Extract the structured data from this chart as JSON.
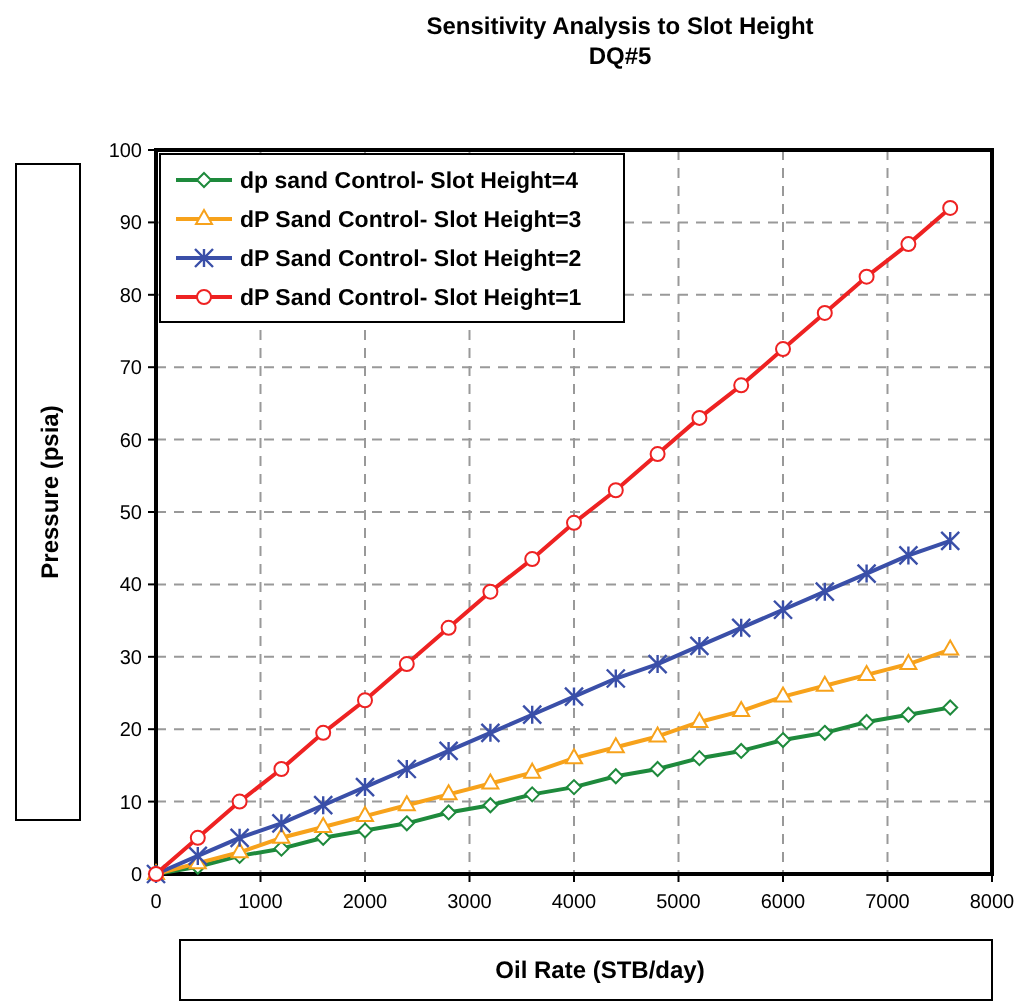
{
  "chart_data": {
    "type": "line",
    "title": "Sensitivity Analysis to Slot Height",
    "subtitle": "DQ#5",
    "xlabel": "Oil Rate (STB/day)",
    "ylabel": "Pressure (psia)",
    "x": [
      0,
      400,
      800,
      1200,
      1600,
      2000,
      2400,
      2800,
      3200,
      3600,
      4000,
      4400,
      4800,
      5200,
      5600,
      6000,
      6400,
      6800,
      7200,
      7600
    ],
    "series": [
      {
        "name": "dp sand Control- Slot Height=4",
        "color": "#1e8a3c",
        "marker": "diamond",
        "values": [
          0,
          1,
          2.5,
          3.5,
          5,
          6,
          7,
          8.5,
          9.5,
          11,
          12,
          13.5,
          14.5,
          16,
          17,
          18.5,
          19.5,
          21,
          22,
          23
        ]
      },
      {
        "name": "dP Sand Control- Slot Height=3",
        "color": "#f7a21b",
        "marker": "triangle",
        "values": [
          0,
          1.5,
          3,
          5,
          6.5,
          8,
          9.5,
          11,
          12.5,
          14,
          16,
          17.5,
          19,
          21,
          22.5,
          24.5,
          26,
          27.5,
          29,
          31
        ]
      },
      {
        "name": "dP Sand Control- Slot Height=2",
        "color": "#3a4fa8",
        "marker": "cross",
        "values": [
          0,
          2.5,
          5,
          7,
          9.5,
          12,
          14.5,
          17,
          19.5,
          22,
          24.5,
          27,
          29,
          31.5,
          34,
          36.5,
          39,
          41.5,
          44,
          46
        ]
      },
      {
        "name": "dP Sand Control- Slot Height=1",
        "color": "#ee2222",
        "marker": "circle",
        "values": [
          0,
          5,
          10,
          14.5,
          19.5,
          24,
          29,
          34,
          39,
          43.5,
          48.5,
          53,
          58,
          63,
          67.5,
          72.5,
          77.5,
          82.5,
          87,
          92
        ]
      }
    ],
    "xlim": [
      0,
      8000
    ],
    "xticks": [
      0,
      1000,
      2000,
      3000,
      4000,
      5000,
      6000,
      7000,
      8000
    ],
    "ylim": [
      0,
      100
    ],
    "yticks": [
      0,
      10,
      20,
      30,
      40,
      50,
      60,
      70,
      80,
      90,
      100
    ],
    "grid": true,
    "legend": "top left",
    "line_style": "solid"
  }
}
